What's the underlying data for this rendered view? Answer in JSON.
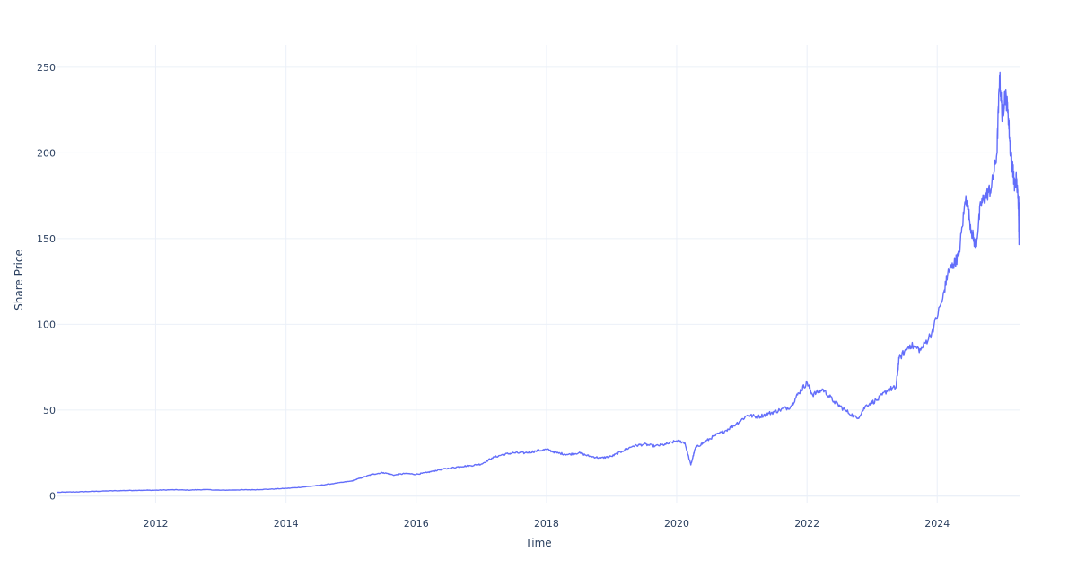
{
  "chart_data": {
    "type": "line",
    "title": "",
    "xlabel": "Time",
    "ylabel": "Share Price",
    "x_ticks": [
      "2012",
      "2014",
      "2016",
      "2018",
      "2020",
      "2022",
      "2024"
    ],
    "y_ticks": [
      "0",
      "50",
      "100",
      "150",
      "200",
      "250"
    ],
    "xlim": [
      "2010-06-29",
      "2025-04-07"
    ],
    "ylim": [
      -4,
      263
    ],
    "grid": true,
    "legend": "none",
    "line_color": "#636efa",
    "grid_color": "#ebf0f8",
    "series": [
      {
        "x": [
          "2010-06-29",
          "2010-10-01",
          "2011-01-01",
          "2011-04-01",
          "2011-07-01",
          "2011-10-01",
          "2012-01-01",
          "2012-04-01",
          "2012-07-01",
          "2012-10-01",
          "2013-01-01",
          "2013-04-01",
          "2013-07-01",
          "2013-10-01",
          "2014-01-01",
          "2014-04-01",
          "2014-07-01",
          "2014-10-01",
          "2015-01-01",
          "2015-03-01",
          "2015-05-01",
          "2015-07-01",
          "2015-09-01",
          "2015-11-01",
          "2016-01-01",
          "2016-03-01",
          "2016-05-01",
          "2016-07-01",
          "2016-09-01",
          "2016-11-01",
          "2017-01-01",
          "2017-03-01",
          "2017-05-01",
          "2017-07-01",
          "2017-09-01",
          "2017-11-01",
          "2018-01-01",
          "2018-03-01",
          "2018-05-01",
          "2018-07-01",
          "2018-09-01",
          "2018-11-01",
          "2019-01-01",
          "2019-03-01",
          "2019-05-01",
          "2019-07-01",
          "2019-09-01",
          "2019-11-01",
          "2020-01-01",
          "2020-02-15",
          "2020-03-20",
          "2020-04-15",
          "2020-06-01",
          "2020-08-01",
          "2020-10-01",
          "2020-12-01",
          "2021-02-01",
          "2021-04-01",
          "2021-06-01",
          "2021-08-01",
          "2021-10-01",
          "2021-11-15",
          "2022-01-01",
          "2022-02-01",
          "2022-04-01",
          "2022-06-01",
          "2022-08-01",
          "2022-10-10",
          "2022-12-01",
          "2023-02-01",
          "2023-04-01",
          "2023-05-15",
          "2023-06-01",
          "2023-08-01",
          "2023-10-01",
          "2023-12-01",
          "2024-02-01",
          "2024-03-01",
          "2024-04-01",
          "2024-05-01",
          "2024-06-10",
          "2024-07-10",
          "2024-08-05",
          "2024-09-01",
          "2024-10-01",
          "2024-11-01",
          "2024-12-01",
          "2024-12-16",
          "2025-01-01",
          "2025-01-15",
          "2025-02-01",
          "2025-02-15",
          "2025-03-01",
          "2025-03-10",
          "2025-03-20",
          "2025-04-01",
          "2025-04-04",
          "2025-04-07"
        ],
        "y": [
          2,
          2.2,
          2.5,
          2.8,
          3,
          3.2,
          3.2,
          3.5,
          3.3,
          3.6,
          3.2,
          3.4,
          3.5,
          3.8,
          4.3,
          5,
          6,
          7.2,
          8.5,
          10.5,
          12.5,
          13.5,
          12,
          13,
          12.5,
          13.5,
          15,
          16,
          17,
          17.5,
          18.5,
          22,
          24,
          25,
          25,
          26,
          27,
          25,
          24,
          25,
          23,
          22,
          23,
          26,
          29,
          30,
          29,
          30,
          32,
          31,
          18,
          28,
          31,
          35,
          38,
          42,
          47,
          46,
          48,
          50,
          52,
          60,
          66,
          59,
          62,
          55,
          50,
          45,
          53,
          56,
          62,
          63,
          80,
          88,
          85,
          95,
          115,
          130,
          135,
          140,
          175,
          155,
          145,
          170,
          175,
          180,
          200,
          245,
          220,
          235,
          225,
          200,
          190,
          180,
          185,
          170,
          148,
          175
        ]
      }
    ]
  }
}
